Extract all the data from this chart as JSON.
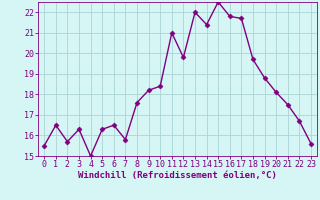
{
  "x": [
    0,
    1,
    2,
    3,
    4,
    5,
    6,
    7,
    8,
    9,
    10,
    11,
    12,
    13,
    14,
    15,
    16,
    17,
    18,
    19,
    20,
    21,
    22,
    23
  ],
  "y": [
    15.5,
    16.5,
    15.7,
    16.3,
    15.0,
    16.3,
    16.5,
    15.8,
    17.6,
    18.2,
    18.4,
    21.0,
    19.8,
    22.0,
    21.4,
    22.5,
    21.8,
    21.7,
    19.7,
    18.8,
    18.1,
    17.5,
    16.7,
    15.6
  ],
  "line_color": "#800080",
  "marker": "D",
  "marker_size": 2.5,
  "line_width": 1.0,
  "bg_color": "#d6f5f5",
  "grid_color": "#aad4d4",
  "xlabel": "Windchill (Refroidissement éolien,°C)",
  "xlabel_fontsize": 6.5,
  "tick_fontsize": 6.0,
  "ylim": [
    15,
    22.5
  ],
  "xlim": [
    -0.5,
    23.5
  ],
  "yticks": [
    15,
    16,
    17,
    18,
    19,
    20,
    21,
    22
  ],
  "xticks": [
    0,
    1,
    2,
    3,
    4,
    5,
    6,
    7,
    8,
    9,
    10,
    11,
    12,
    13,
    14,
    15,
    16,
    17,
    18,
    19,
    20,
    21,
    22,
    23
  ]
}
